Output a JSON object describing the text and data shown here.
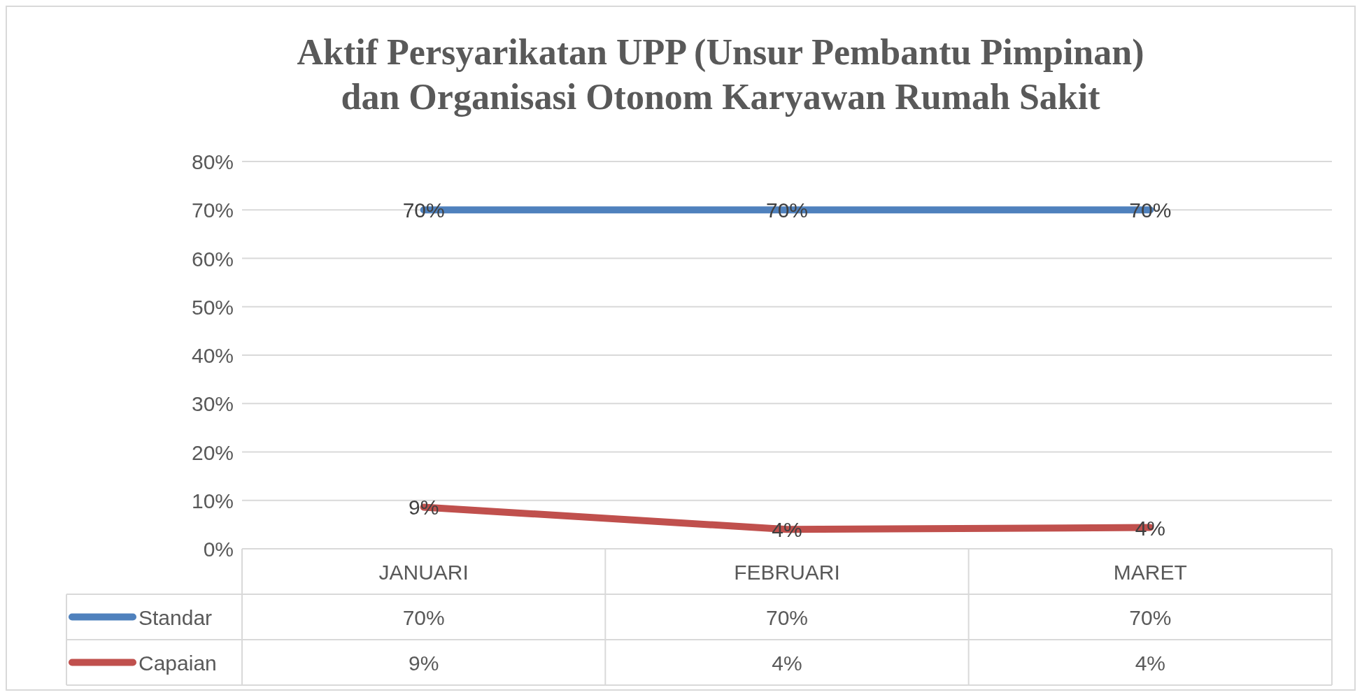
{
  "chart_data": {
    "type": "line",
    "title": "Aktif Persyarikatan UPP (Unsur Pembantu Pimpinan) dan Organisasi Otonom Karyawan Rumah Sakit",
    "categories": [
      "JANUARI",
      "FEBRUARI",
      "MARET"
    ],
    "series": [
      {
        "name": "Standar",
        "color": "#4f81bd",
        "values": [
          70,
          70,
          70
        ],
        "value_labels": [
          "70%",
          "70%",
          "70%"
        ]
      },
      {
        "name": "Capaian",
        "color": "#c0504d",
        "values": [
          8.6,
          4,
          4.4
        ],
        "value_labels": [
          "9%",
          "4%",
          "4%"
        ]
      }
    ],
    "ylim": [
      0,
      80
    ],
    "yticks": [
      {
        "value": 0,
        "label": "0%"
      },
      {
        "value": 10,
        "label": "10%"
      },
      {
        "value": 20,
        "label": "20%"
      },
      {
        "value": 30,
        "label": "30%"
      },
      {
        "value": 40,
        "label": "40%"
      },
      {
        "value": 50,
        "label": "50%"
      },
      {
        "value": 60,
        "label": "60%"
      },
      {
        "value": 70,
        "label": "70%"
      },
      {
        "value": 80,
        "label": "80%"
      }
    ],
    "grid": "y",
    "legend": "bottom",
    "marker": "none",
    "line_style": "solid"
  }
}
